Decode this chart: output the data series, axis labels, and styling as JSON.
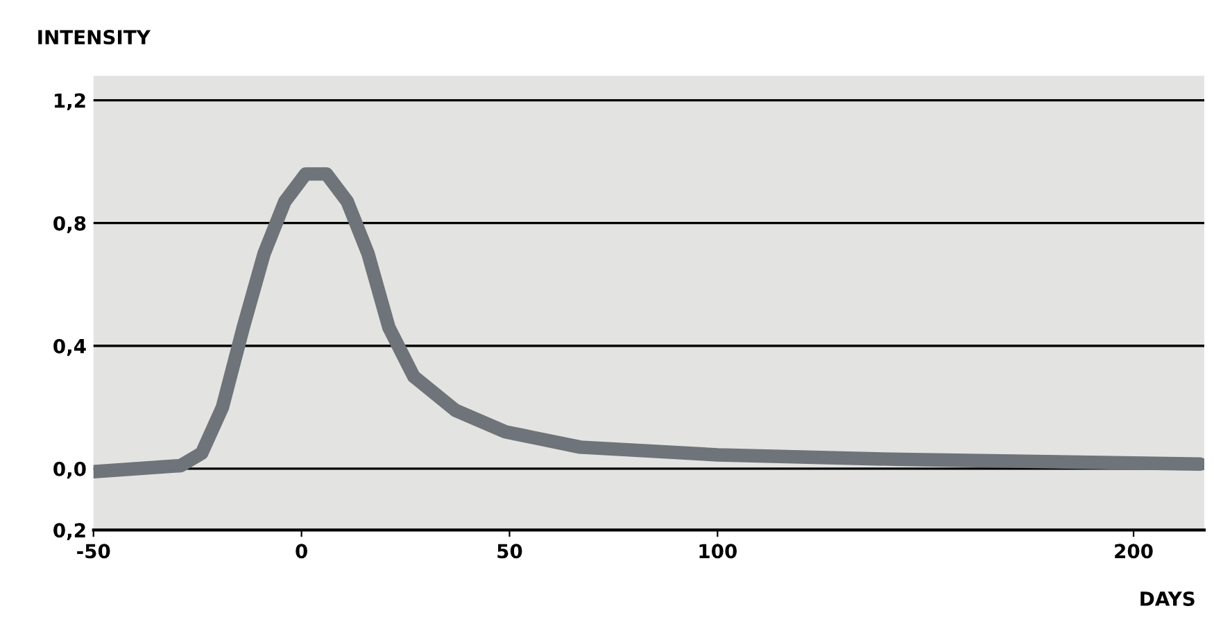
{
  "chart_data": {
    "type": "line",
    "xlabel": "DAYS",
    "ylabel": "INTENSITY",
    "x": [
      -50,
      -29,
      -24,
      -19,
      -14,
      -9,
      -4,
      1,
      6,
      11,
      16,
      21,
      27,
      37,
      49,
      67,
      100,
      144,
      216
    ],
    "series": [
      {
        "color": "#6e7479",
        "values": [
          -0.01,
          0.01,
          0.05,
          0.2,
          0.46,
          0.7,
          0.87,
          0.96,
          0.96,
          0.87,
          0.7,
          0.46,
          0.3,
          0.19,
          0.12,
          0.07,
          0.045,
          0.03,
          0.015
        ]
      }
    ],
    "xlim": [
      -50,
      217
    ],
    "xticks": [
      {
        "value": -50,
        "label": "-50"
      },
      0,
      50,
      100,
      200
    ],
    "ylim": [
      -0.2,
      1.28
    ],
    "yticks": [
      {
        "value": -0.2,
        "label": "0,2"
      },
      {
        "value": 0,
        "label": "0,0"
      },
      {
        "value": 0.4,
        "label": "0,4"
      },
      {
        "value": 0.8,
        "label": "0,8"
      },
      {
        "value": 1.2,
        "label": "1,2"
      }
    ],
    "grid": "y",
    "line_style": "solid",
    "marker": "none"
  }
}
